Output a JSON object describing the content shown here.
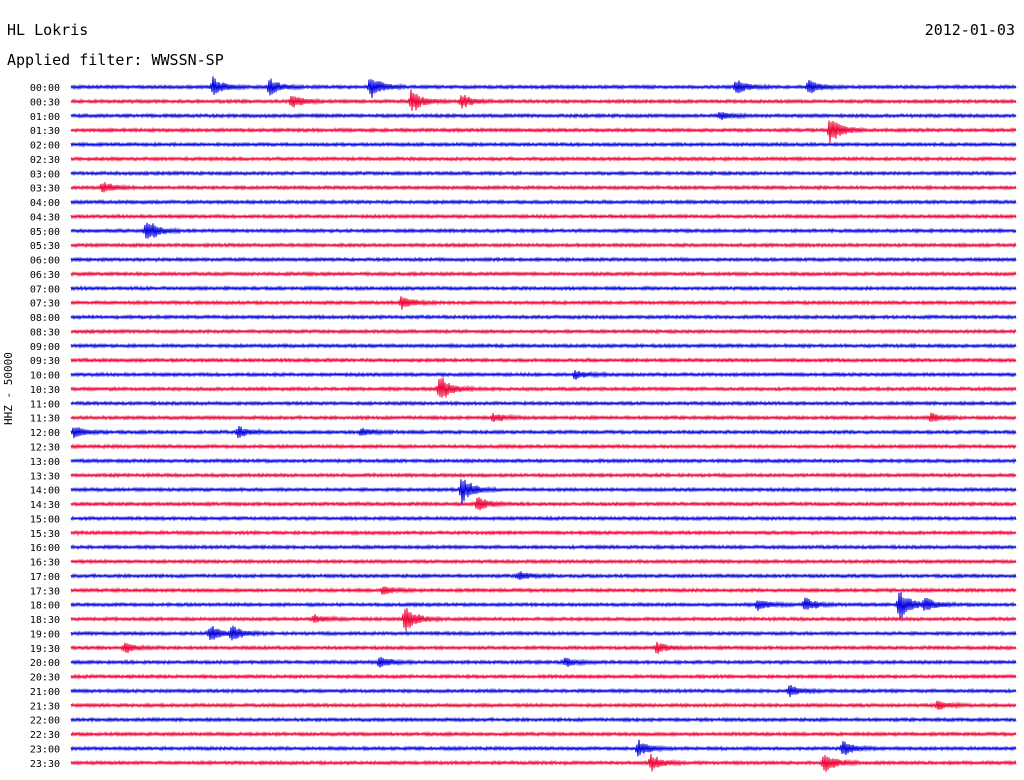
{
  "header": {
    "station": "HL Lokris",
    "date": "2012-01-03",
    "filter": "Applied filter: WWSSN-SP"
  },
  "colors": {
    "odd": "#0000dd",
    "even": "#ee0033",
    "text": "#000000"
  },
  "chart_data": {
    "type": "line",
    "title": "HL Lokris",
    "subtitle": "Applied filter: WWSSN-SP",
    "ylabel": "HHZ - 50000",
    "xlabel": "",
    "row_labels": [
      "00:00",
      "00:30",
      "01:00",
      "01:30",
      "02:00",
      "02:30",
      "03:00",
      "03:30",
      "04:00",
      "04:30",
      "05:00",
      "05:30",
      "06:00",
      "06:30",
      "07:00",
      "07:30",
      "08:00",
      "08:30",
      "09:00",
      "09:30",
      "10:00",
      "10:30",
      "11:00",
      "11:30",
      "12:00",
      "12:30",
      "13:00",
      "13:30",
      "14:00",
      "14:30",
      "15:00",
      "15:30",
      "16:00",
      "16:30",
      "17:00",
      "17:30",
      "18:00",
      "18:30",
      "19:00",
      "19:30",
      "20:00",
      "20:30",
      "21:00",
      "21:30",
      "22:00",
      "22:30",
      "23:00",
      "23:30"
    ],
    "trace_minutes": 30,
    "events": [
      {
        "row": 0,
        "minute": 4.5,
        "amplitude": 0.7
      },
      {
        "row": 0,
        "minute": 6.3,
        "amplitude": 0.6
      },
      {
        "row": 0,
        "minute": 9.5,
        "amplitude": 0.9
      },
      {
        "row": 0,
        "minute": 21.1,
        "amplitude": 0.6
      },
      {
        "row": 0,
        "minute": 23.4,
        "amplitude": 0.5
      },
      {
        "row": 1,
        "minute": 7.0,
        "amplitude": 0.5
      },
      {
        "row": 1,
        "minute": 10.8,
        "amplitude": 0.9
      },
      {
        "row": 1,
        "minute": 12.4,
        "amplitude": 0.5
      },
      {
        "row": 2,
        "minute": 20.6,
        "amplitude": 0.3
      },
      {
        "row": 3,
        "minute": 24.1,
        "amplitude": 1.0
      },
      {
        "row": 7,
        "minute": 1.0,
        "amplitude": 0.4
      },
      {
        "row": 10,
        "minute": 2.4,
        "amplitude": 0.9
      },
      {
        "row": 15,
        "minute": 10.5,
        "amplitude": 0.5
      },
      {
        "row": 20,
        "minute": 16.0,
        "amplitude": 0.3
      },
      {
        "row": 21,
        "minute": 11.7,
        "amplitude": 1.0
      },
      {
        "row": 23,
        "minute": 13.4,
        "amplitude": 0.3
      },
      {
        "row": 23,
        "minute": 27.3,
        "amplitude": 0.3
      },
      {
        "row": 24,
        "minute": 0.1,
        "amplitude": 0.4
      },
      {
        "row": 24,
        "minute": 5.3,
        "amplitude": 0.4
      },
      {
        "row": 24,
        "minute": 9.2,
        "amplitude": 0.3
      },
      {
        "row": 28,
        "minute": 12.4,
        "amplitude": 1.0
      },
      {
        "row": 29,
        "minute": 12.9,
        "amplitude": 0.5
      },
      {
        "row": 34,
        "minute": 14.2,
        "amplitude": 0.3
      },
      {
        "row": 35,
        "minute": 9.9,
        "amplitude": 0.3
      },
      {
        "row": 36,
        "minute": 21.8,
        "amplitude": 0.4
      },
      {
        "row": 36,
        "minute": 23.3,
        "amplitude": 0.5
      },
      {
        "row": 36,
        "minute": 26.3,
        "amplitude": 1.1
      },
      {
        "row": 36,
        "minute": 27.1,
        "amplitude": 0.5
      },
      {
        "row": 37,
        "minute": 7.7,
        "amplitude": 0.3
      },
      {
        "row": 37,
        "minute": 10.6,
        "amplitude": 1.0
      },
      {
        "row": 38,
        "minute": 4.4,
        "amplitude": 0.6
      },
      {
        "row": 38,
        "minute": 5.1,
        "amplitude": 0.5
      },
      {
        "row": 39,
        "minute": 1.7,
        "amplitude": 0.4
      },
      {
        "row": 39,
        "minute": 18.6,
        "amplitude": 0.4
      },
      {
        "row": 40,
        "minute": 9.8,
        "amplitude": 0.4
      },
      {
        "row": 40,
        "minute": 15.7,
        "amplitude": 0.3
      },
      {
        "row": 42,
        "minute": 22.8,
        "amplitude": 0.4
      },
      {
        "row": 43,
        "minute": 27.5,
        "amplitude": 0.3
      },
      {
        "row": 46,
        "minute": 18.0,
        "amplitude": 0.6
      },
      {
        "row": 46,
        "minute": 24.5,
        "amplitude": 0.5
      },
      {
        "row": 47,
        "minute": 18.4,
        "amplitude": 0.6
      },
      {
        "row": 47,
        "minute": 23.9,
        "amplitude": 0.8
      }
    ],
    "grid": false,
    "legend": "none"
  }
}
